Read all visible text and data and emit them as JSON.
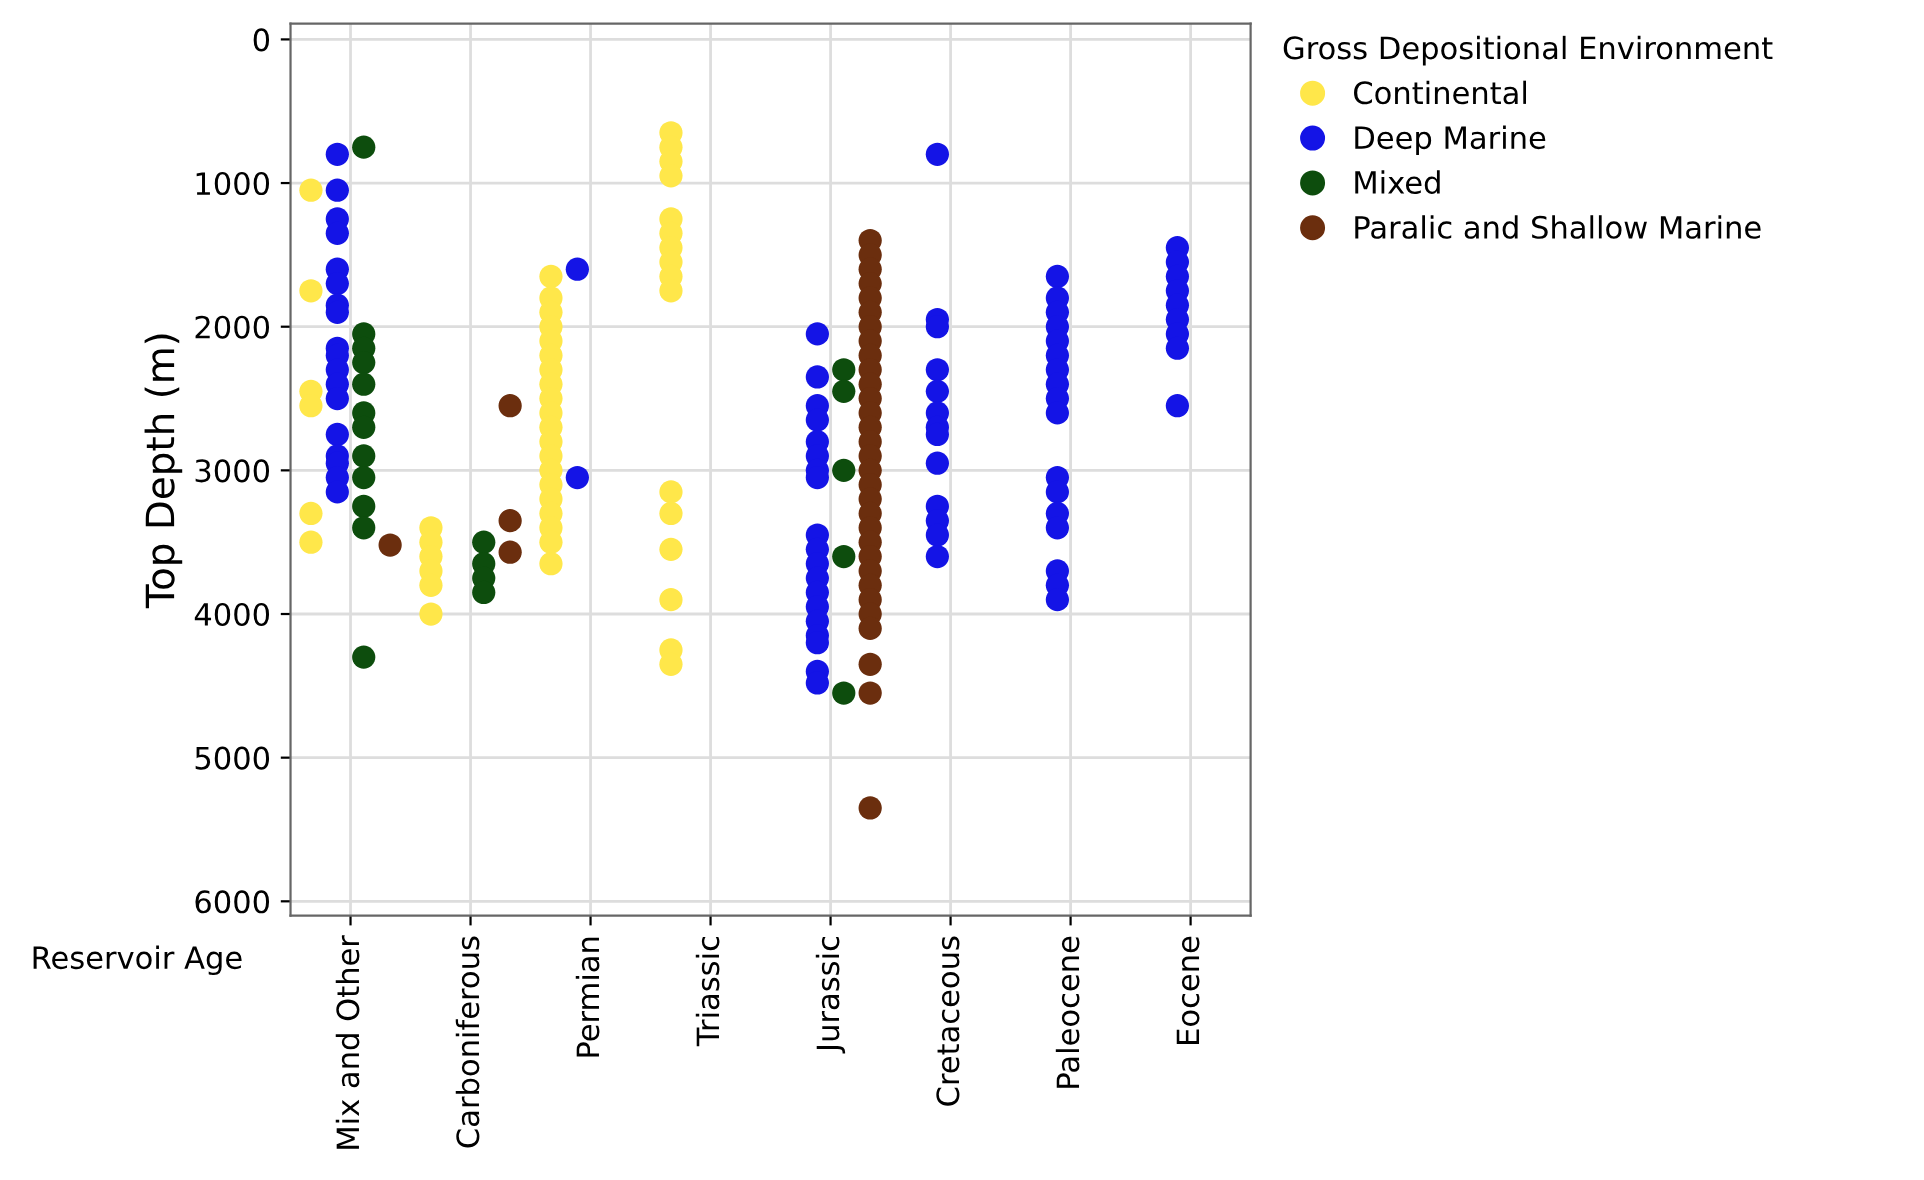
{
  "chart_data": {
    "type": "scatter",
    "xlabel": "Reservoir Age",
    "ylabel": "Top Depth (m)",
    "legend_title": "Gross Depositional Environment",
    "categories": [
      "Mix and Other",
      "Carboniferous",
      "Permian",
      "Triassic",
      "Jurassic",
      "Cretaceous",
      "Paleocene",
      "Eocene"
    ],
    "ylim": [
      6100,
      -110
    ],
    "yticks": [
      0,
      1000,
      2000,
      3000,
      4000,
      5000,
      6000
    ],
    "grid": true,
    "legend": "top right",
    "marker": "circle",
    "series": [
      {
        "name": "Continental",
        "color": "#ffe74a",
        "x": [
          "Mix and Other",
          "Mix and Other",
          "Mix and Other",
          "Mix and Other",
          "Mix and Other",
          "Mix and Other",
          "Carboniferous",
          "Carboniferous",
          "Carboniferous",
          "Carboniferous",
          "Carboniferous",
          "Carboniferous",
          "Permian",
          "Permian",
          "Permian",
          "Permian",
          "Permian",
          "Permian",
          "Permian",
          "Permian",
          "Permian",
          "Permian",
          "Permian",
          "Permian",
          "Permian",
          "Permian",
          "Permian",
          "Permian",
          "Permian",
          "Permian",
          "Permian",
          "Permian",
          "Triassic",
          "Triassic",
          "Triassic",
          "Triassic",
          "Triassic",
          "Triassic",
          "Triassic",
          "Triassic",
          "Triassic",
          "Triassic",
          "Triassic",
          "Triassic",
          "Triassic",
          "Triassic",
          "Triassic",
          "Triassic"
        ],
        "values": [
          1050,
          1750,
          2450,
          2550,
          3300,
          3500,
          3400,
          3500,
          3600,
          3700,
          3800,
          4000,
          1650,
          1800,
          1900,
          2000,
          2100,
          2200,
          2300,
          2400,
          2500,
          2600,
          2700,
          2800,
          2900,
          3000,
          3100,
          3200,
          3300,
          3400,
          3500,
          3650,
          650,
          750,
          850,
          950,
          1250,
          1350,
          1450,
          1550,
          1650,
          1750,
          3150,
          3300,
          3550,
          3900,
          4250,
          4350
        ]
      },
      {
        "name": "Deep Marine",
        "color": "#1414e6",
        "x": [
          "Mix and Other",
          "Mix and Other",
          "Mix and Other",
          "Mix and Other",
          "Mix and Other",
          "Mix and Other",
          "Mix and Other",
          "Mix and Other",
          "Mix and Other",
          "Mix and Other",
          "Mix and Other",
          "Mix and Other",
          "Mix and Other",
          "Mix and Other",
          "Mix and Other",
          "Mix and Other",
          "Mix and Other",
          "Mix and Other",
          "Permian",
          "Permian",
          "Jurassic",
          "Jurassic",
          "Jurassic",
          "Jurassic",
          "Jurassic",
          "Jurassic",
          "Jurassic",
          "Jurassic",
          "Jurassic",
          "Jurassic",
          "Jurassic",
          "Jurassic",
          "Jurassic",
          "Jurassic",
          "Jurassic",
          "Jurassic",
          "Jurassic",
          "Jurassic",
          "Jurassic",
          "Cretaceous",
          "Cretaceous",
          "Cretaceous",
          "Cretaceous",
          "Cretaceous",
          "Cretaceous",
          "Cretaceous",
          "Cretaceous",
          "Cretaceous",
          "Cretaceous",
          "Cretaceous",
          "Cretaceous",
          "Cretaceous",
          "Paleocene",
          "Paleocene",
          "Paleocene",
          "Paleocene",
          "Paleocene",
          "Paleocene",
          "Paleocene",
          "Paleocene",
          "Paleocene",
          "Paleocene",
          "Paleocene",
          "Paleocene",
          "Paleocene",
          "Paleocene",
          "Paleocene",
          "Paleocene",
          "Paleocene",
          "Eocene",
          "Eocene",
          "Eocene",
          "Eocene",
          "Eocene",
          "Eocene",
          "Eocene",
          "Eocene",
          "Eocene"
        ],
        "values": [
          800,
          1050,
          1250,
          1350,
          1600,
          1700,
          1850,
          1900,
          2150,
          2200,
          2300,
          2400,
          2500,
          2750,
          2900,
          2950,
          3050,
          3150,
          1600,
          3050,
          2050,
          2350,
          2550,
          2650,
          2800,
          2900,
          3000,
          3050,
          3450,
          3550,
          3650,
          3750,
          3850,
          3950,
          4050,
          4150,
          4200,
          4400,
          4480,
          800,
          1950,
          2000,
          2300,
          2450,
          2600,
          2700,
          2750,
          2950,
          3250,
          3350,
          3450,
          3600,
          1650,
          1800,
          1900,
          2000,
          2100,
          2200,
          2300,
          2400,
          2500,
          2600,
          3050,
          3150,
          3300,
          3400,
          3700,
          3800,
          3900,
          1450,
          1550,
          1650,
          1750,
          1850,
          1950,
          2050,
          2150,
          2550
        ]
      },
      {
        "name": "Mixed",
        "color": "#0d4d0d",
        "x": [
          "Mix and Other",
          "Mix and Other",
          "Mix and Other",
          "Mix and Other",
          "Mix and Other",
          "Mix and Other",
          "Mix and Other",
          "Mix and Other",
          "Mix and Other",
          "Mix and Other",
          "Mix and Other",
          "Mix and Other",
          "Carboniferous",
          "Carboniferous",
          "Carboniferous",
          "Carboniferous",
          "Jurassic",
          "Jurassic",
          "Jurassic",
          "Jurassic",
          "Jurassic"
        ],
        "values": [
          750,
          2050,
          2150,
          2250,
          2400,
          2600,
          2700,
          2900,
          3050,
          3250,
          3400,
          4300,
          3500,
          3650,
          3750,
          3850,
          2300,
          2450,
          3000,
          3600,
          4550
        ]
      },
      {
        "name": "Paralic and Shallow Marine",
        "color": "#6b2e0e",
        "x": [
          "Mix and Other",
          "Carboniferous",
          "Carboniferous",
          "Carboniferous",
          "Jurassic",
          "Jurassic",
          "Jurassic",
          "Jurassic",
          "Jurassic",
          "Jurassic",
          "Jurassic",
          "Jurassic",
          "Jurassic",
          "Jurassic",
          "Jurassic",
          "Jurassic",
          "Jurassic",
          "Jurassic",
          "Jurassic",
          "Jurassic",
          "Jurassic",
          "Jurassic",
          "Jurassic",
          "Jurassic",
          "Jurassic",
          "Jurassic",
          "Jurassic",
          "Jurassic",
          "Jurassic",
          "Jurassic",
          "Jurassic",
          "Jurassic",
          "Jurassic",
          "Jurassic",
          "Jurassic"
        ],
        "values": [
          3520,
          2550,
          3350,
          3570,
          1400,
          1500,
          1600,
          1700,
          1800,
          1900,
          2000,
          2100,
          2200,
          2300,
          2400,
          2500,
          2600,
          2700,
          2800,
          2900,
          3000,
          3100,
          3200,
          3300,
          3400,
          3500,
          3600,
          3700,
          3800,
          3900,
          4000,
          4100,
          4350,
          4550,
          5350
        ]
      }
    ]
  }
}
